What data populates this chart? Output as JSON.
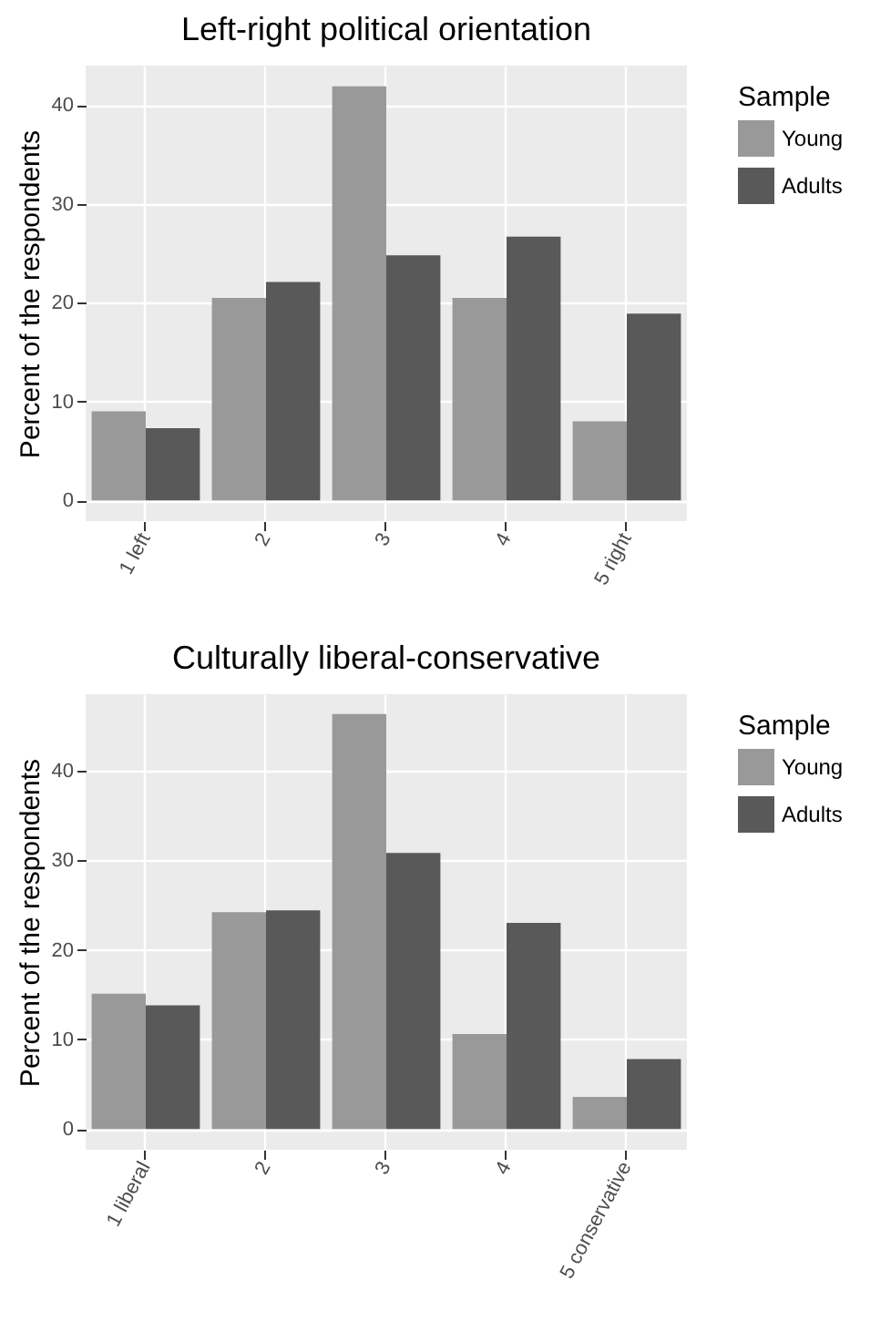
{
  "chart_data": [
    {
      "type": "bar",
      "title": "Left-right political orientation",
      "ylabel": "Percent of the respondents",
      "legend_title": "Sample",
      "categories": [
        "1 left",
        "2",
        "3",
        "4",
        "5 right"
      ],
      "series": [
        {
          "name": "Young",
          "color": "#999999",
          "values": [
            9.0,
            20.5,
            41.9,
            20.5,
            8.0
          ]
        },
        {
          "name": "Adults",
          "color": "#595959",
          "values": [
            7.3,
            22.1,
            24.8,
            26.7,
            18.9
          ]
        }
      ],
      "ylim": [
        -2.1,
        44
      ],
      "yticks": [
        0,
        10,
        20,
        30,
        40
      ],
      "grid": true,
      "legend": "right"
    },
    {
      "type": "bar",
      "title": "Culturally liberal-conservative",
      "ylabel": "Percent of the respondents",
      "legend_title": "Sample",
      "categories": [
        "1 liberal",
        "2",
        "3",
        "4",
        "5 conservative"
      ],
      "series": [
        {
          "name": "Young",
          "color": "#999999",
          "values": [
            15.1,
            24.2,
            46.3,
            10.6,
            3.6
          ]
        },
        {
          "name": "Adults",
          "color": "#595959",
          "values": [
            13.8,
            24.4,
            30.8,
            23.0,
            7.8
          ]
        }
      ],
      "ylim": [
        -2.3,
        48.5
      ],
      "yticks": [
        0,
        10,
        20,
        30,
        40
      ],
      "grid": true,
      "legend": "right"
    }
  ]
}
